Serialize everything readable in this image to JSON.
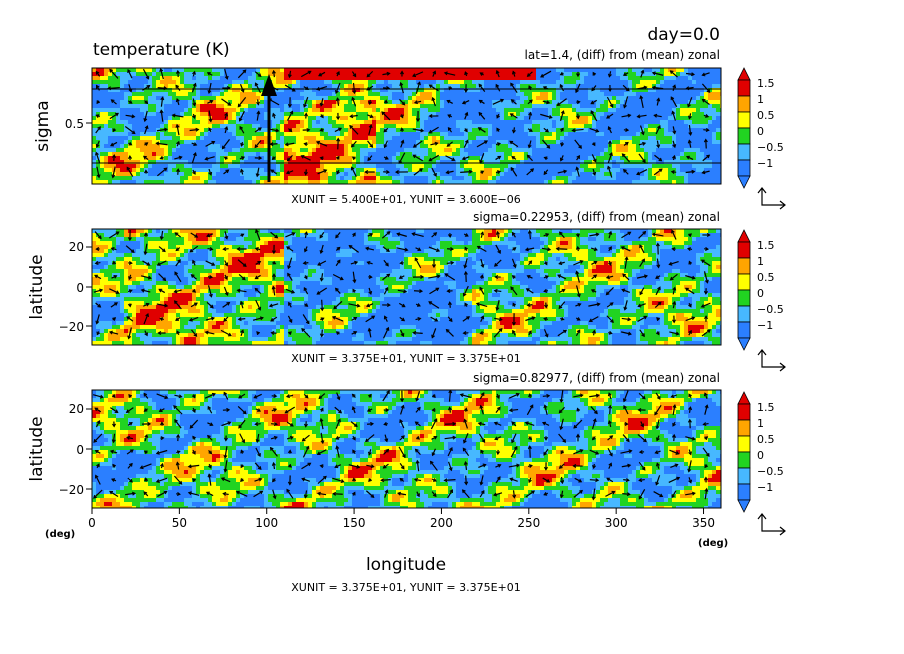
{
  "header": {
    "day": "day=0.0",
    "title": "temperature (K)"
  },
  "colors": {
    "levels": [
      "#2b7fff",
      "#47b8ff",
      "#21d321",
      "#ffff00",
      "#ffa500",
      "#e00000"
    ],
    "arrow": "#000000"
  },
  "colorbar": {
    "ticks": [
      "1.5",
      "1",
      "0.5",
      "0",
      "−0.5",
      "−1"
    ]
  },
  "chart_data": [
    {
      "type": "heatmap",
      "subtitle": "lat=1.4, (diff) from (mean) zonal",
      "ylabel": "sigma",
      "yticks": [
        "0.5"
      ],
      "unit_text": "XUNIT = 5.400E+01, YUNIT = 3.600E−06",
      "x_range": [
        0,
        360
      ],
      "levels": [
        -1,
        -0.5,
        0,
        0.5,
        1,
        1.5
      ]
    },
    {
      "type": "heatmap",
      "subtitle": "sigma=0.22953, (diff) from (mean) zonal",
      "ylabel": "latitude",
      "yticks": [
        "20",
        "0",
        "−20"
      ],
      "unit_text": "XUNIT = 3.375E+01, YUNIT = 3.375E+01",
      "x_range": [
        0,
        360
      ],
      "y_range": [
        -30,
        30
      ],
      "levels": [
        -1,
        -0.5,
        0,
        0.5,
        1,
        1.5
      ]
    },
    {
      "type": "heatmap",
      "subtitle": "sigma=0.82977, (diff) from (mean) zonal",
      "ylabel": "latitude",
      "yticks": [
        "20",
        "0",
        "−20"
      ],
      "xticks": [
        "0",
        "50",
        "100",
        "150",
        "200",
        "250",
        "300",
        "350"
      ],
      "xlabel": "longitude",
      "x_unit_left": "(deg)",
      "x_unit_right": "(deg)",
      "unit_text": "XUNIT = 3.375E+01, YUNIT = 3.375E+01",
      "x_range": [
        0,
        360
      ],
      "y_range": [
        -30,
        30
      ],
      "levels": [
        -1,
        -0.5,
        0,
        0.5,
        1,
        1.5
      ]
    }
  ]
}
